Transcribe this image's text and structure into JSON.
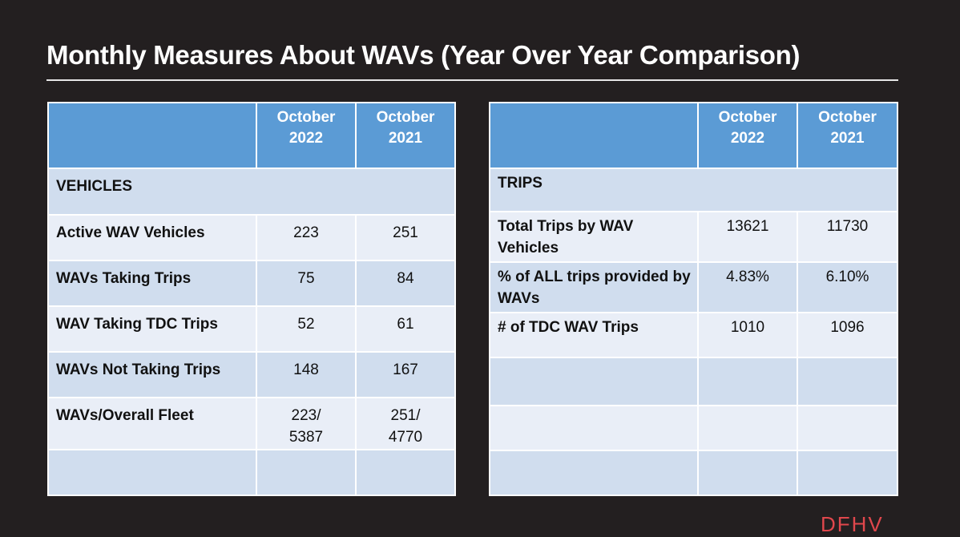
{
  "title": "Monthly Measures About WAVs (Year Over Year Comparison)",
  "colors": {
    "header": "#5b9bd5",
    "row_dark": "#d0ddee",
    "row_light": "#e9eef7",
    "brand": "#e0474c",
    "background": "#231f20"
  },
  "vehicles_table": {
    "col1_line1": "October",
    "col1_line2": "2022",
    "col2_line1": "October",
    "col2_line2": "2021",
    "section": "VEHICLES",
    "rows": [
      {
        "label": "Active WAV Vehicles",
        "v2022": "223",
        "v2021": "251"
      },
      {
        "label": "WAVs Taking Trips",
        "v2022": "75",
        "v2021": "84"
      },
      {
        "label": "WAV Taking TDC Trips",
        "v2022": "52",
        "v2021": "61"
      },
      {
        "label": "WAVs Not Taking Trips",
        "v2022": "148",
        "v2021": "167"
      },
      {
        "label": "WAVs/Overall Fleet",
        "v2022": "223/ 5387",
        "v2021": "251/ 4770"
      }
    ]
  },
  "trips_table": {
    "col1_line1": "October",
    "col1_line2": "2022",
    "col2_line1": "October",
    "col2_line2": "2021",
    "section": "TRIPS",
    "rows": [
      {
        "label": "Total Trips by WAV Vehicles",
        "v2022": "13621",
        "v2021": "11730"
      },
      {
        "label": "% of ALL trips provided by WAVs",
        "v2022": "4.83%",
        "v2021": "6.10%"
      },
      {
        "label": "# of TDC WAV Trips",
        "v2022": "1010",
        "v2021": "1096"
      }
    ]
  },
  "footer": {
    "brand": "DFHV"
  }
}
